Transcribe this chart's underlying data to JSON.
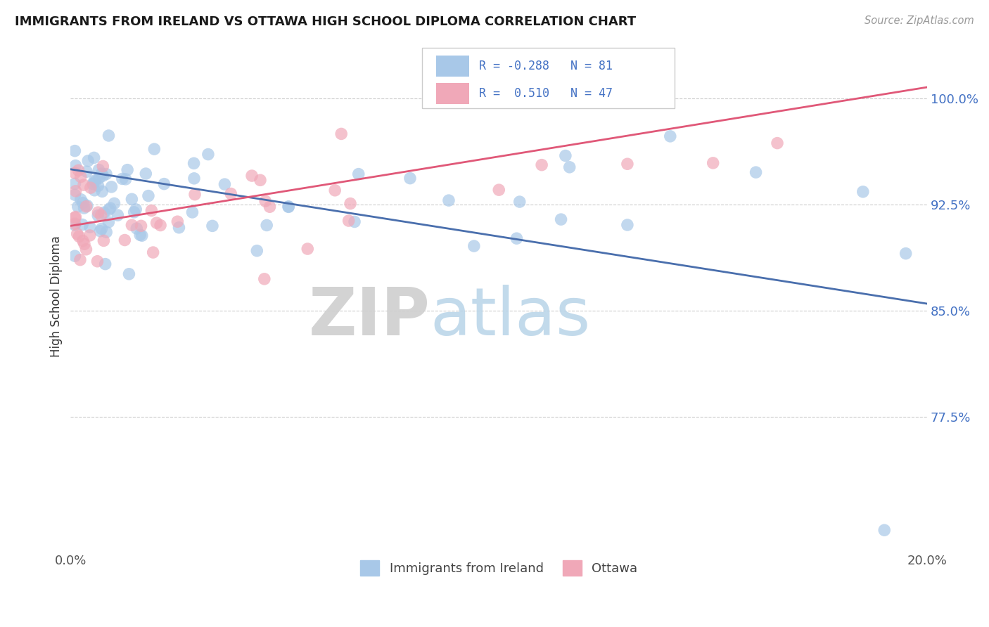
{
  "title": "IMMIGRANTS FROM IRELAND VS OTTAWA HIGH SCHOOL DIPLOMA CORRELATION CHART",
  "source_text": "Source: ZipAtlas.com",
  "ylabel": "High School Diploma",
  "y_ticks": [
    0.775,
    0.85,
    0.925,
    1.0
  ],
  "y_tick_labels": [
    "77.5%",
    "85.0%",
    "92.5%",
    "100.0%"
  ],
  "xlim": [
    0.0,
    0.2
  ],
  "ylim": [
    0.68,
    1.04
  ],
  "blue_R": -0.288,
  "blue_N": 81,
  "pink_R": 0.51,
  "pink_N": 47,
  "blue_color": "#a8c8e8",
  "pink_color": "#f0a8b8",
  "blue_line_color": "#4a6fad",
  "pink_line_color": "#e05878",
  "legend_label_blue": "Immigrants from Ireland",
  "legend_label_pink": "Ottawa",
  "blue_trend_x0": 0.0,
  "blue_trend_y0": 0.95,
  "blue_trend_x1": 0.2,
  "blue_trend_y1": 0.855,
  "pink_trend_x0": 0.0,
  "pink_trend_y0": 0.91,
  "pink_trend_x1": 0.2,
  "pink_trend_y1": 1.008
}
